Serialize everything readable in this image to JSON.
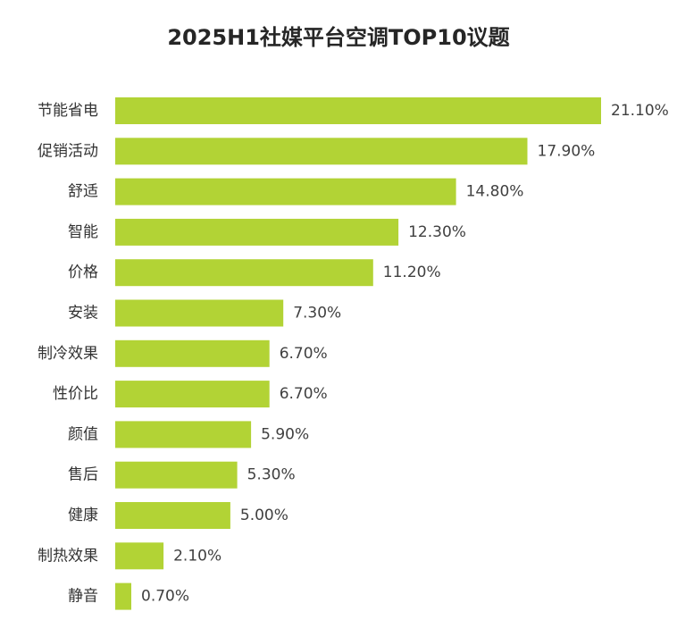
{
  "chart_data": {
    "type": "bar",
    "orientation": "horizontal",
    "title": "2025H1社媒平台空调TOP10议题",
    "categories": [
      "节能省电",
      "促销活动",
      "舒适",
      "智能",
      "价格",
      "安装",
      "制冷效果",
      "性价比",
      "颜值",
      "售后",
      "健康",
      "制热效果",
      "静音"
    ],
    "values": [
      21.1,
      17.9,
      14.8,
      12.3,
      11.2,
      7.3,
      6.7,
      6.7,
      5.9,
      5.3,
      5.0,
      2.1,
      0.7
    ],
    "value_labels": [
      "21.10%",
      "17.90%",
      "14.80%",
      "12.30%",
      "11.20%",
      "7.30%",
      "6.70%",
      "6.70%",
      "5.90%",
      "5.30%",
      "5.00%",
      "2.10%",
      "0.70%"
    ],
    "xlim": [
      0,
      21.1
    ],
    "bar_color": "#b2d335",
    "grid": false,
    "legend": "none"
  }
}
